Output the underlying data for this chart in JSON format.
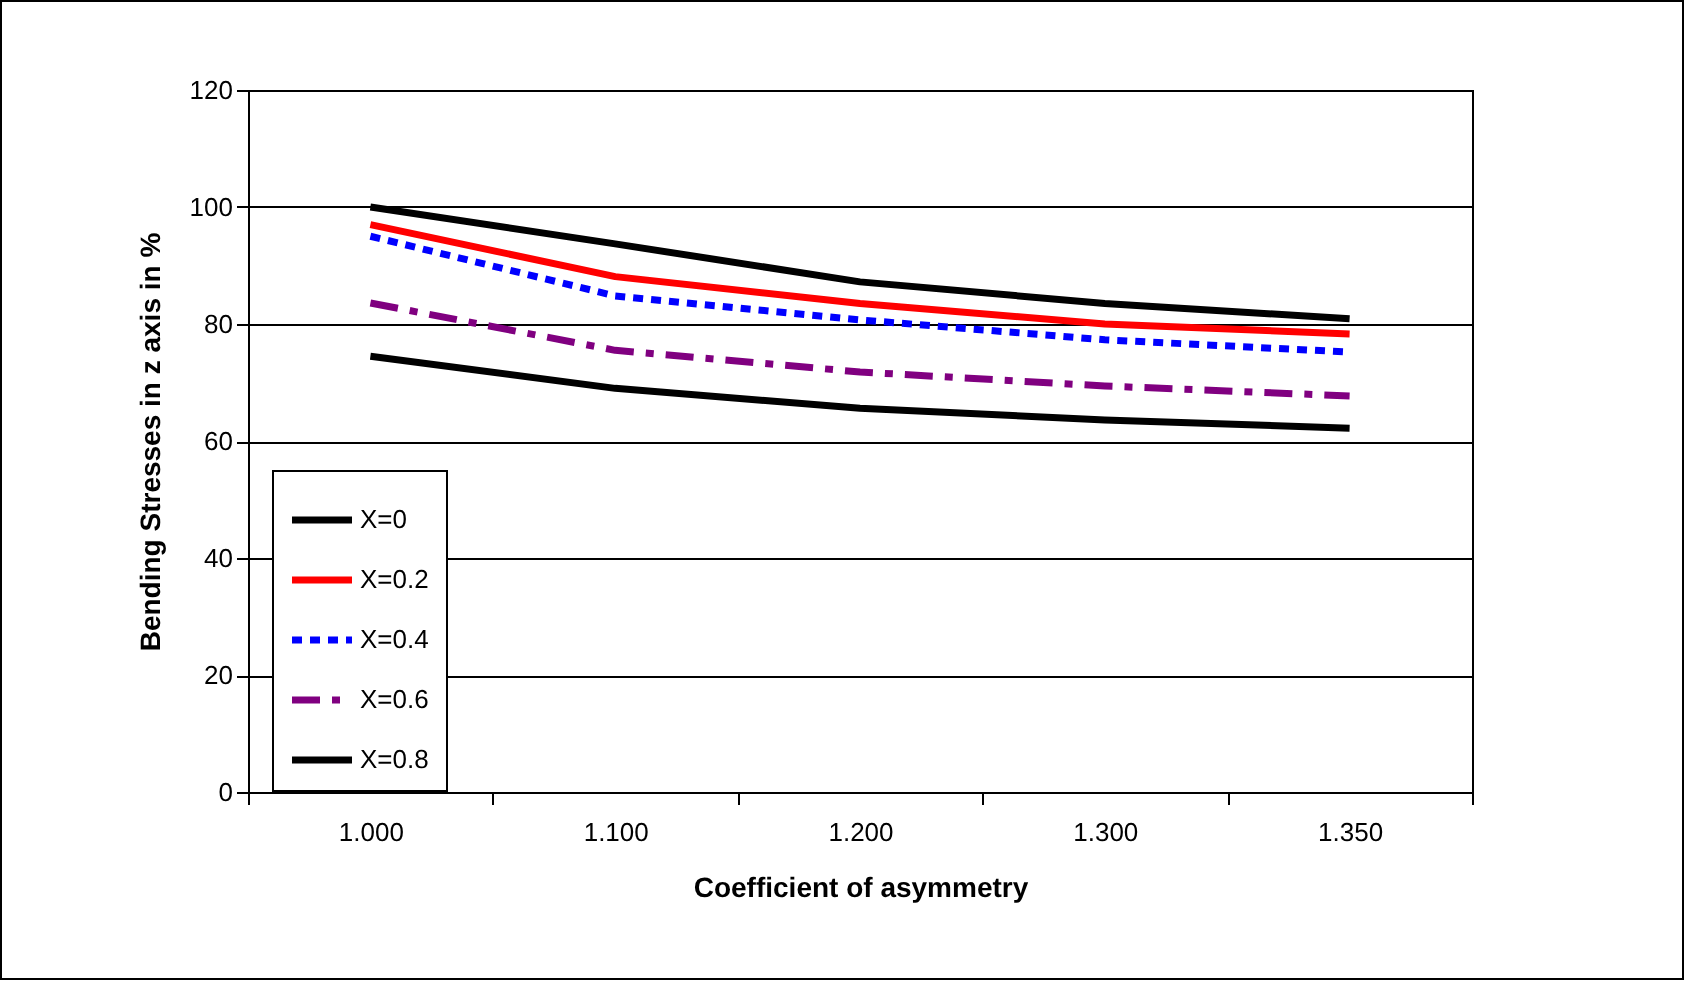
{
  "chart_data": {
    "type": "line",
    "xlabel": "Coefficient of asymmetry",
    "ylabel": "Bending Stresses in z axis in %",
    "categories": [
      "1.000",
      "1.100",
      "1.200",
      "1.300",
      "1.350"
    ],
    "ylim": [
      0,
      120
    ],
    "yticks": [
      0,
      20,
      40,
      60,
      80,
      100,
      120
    ],
    "grid": "y",
    "legend": "left",
    "marker": "none",
    "series": [
      {
        "name": "X=0",
        "color": "#000000",
        "line_style": "solid",
        "values": [
          100,
          93.7,
          87.2,
          83.5,
          80.9
        ]
      },
      {
        "name": "X=0.2",
        "color": "#ff0000",
        "line_style": "solid",
        "values": [
          97,
          88.1,
          83.5,
          80,
          78.3
        ]
      },
      {
        "name": "X=0.4",
        "color": "#0000ff",
        "line_style": "dotted",
        "values": [
          95,
          84.8,
          80.7,
          77.3,
          75.2
        ]
      },
      {
        "name": "X=0.6",
        "color": "#800080",
        "line_style": "dashed",
        "values": [
          83.6,
          75.5,
          71.8,
          69.4,
          67.7
        ]
      },
      {
        "name": "X=0.8",
        "color": "#000000",
        "line_style": "solid",
        "values": [
          74.5,
          69,
          65.6,
          63.6,
          62.2
        ]
      }
    ]
  }
}
